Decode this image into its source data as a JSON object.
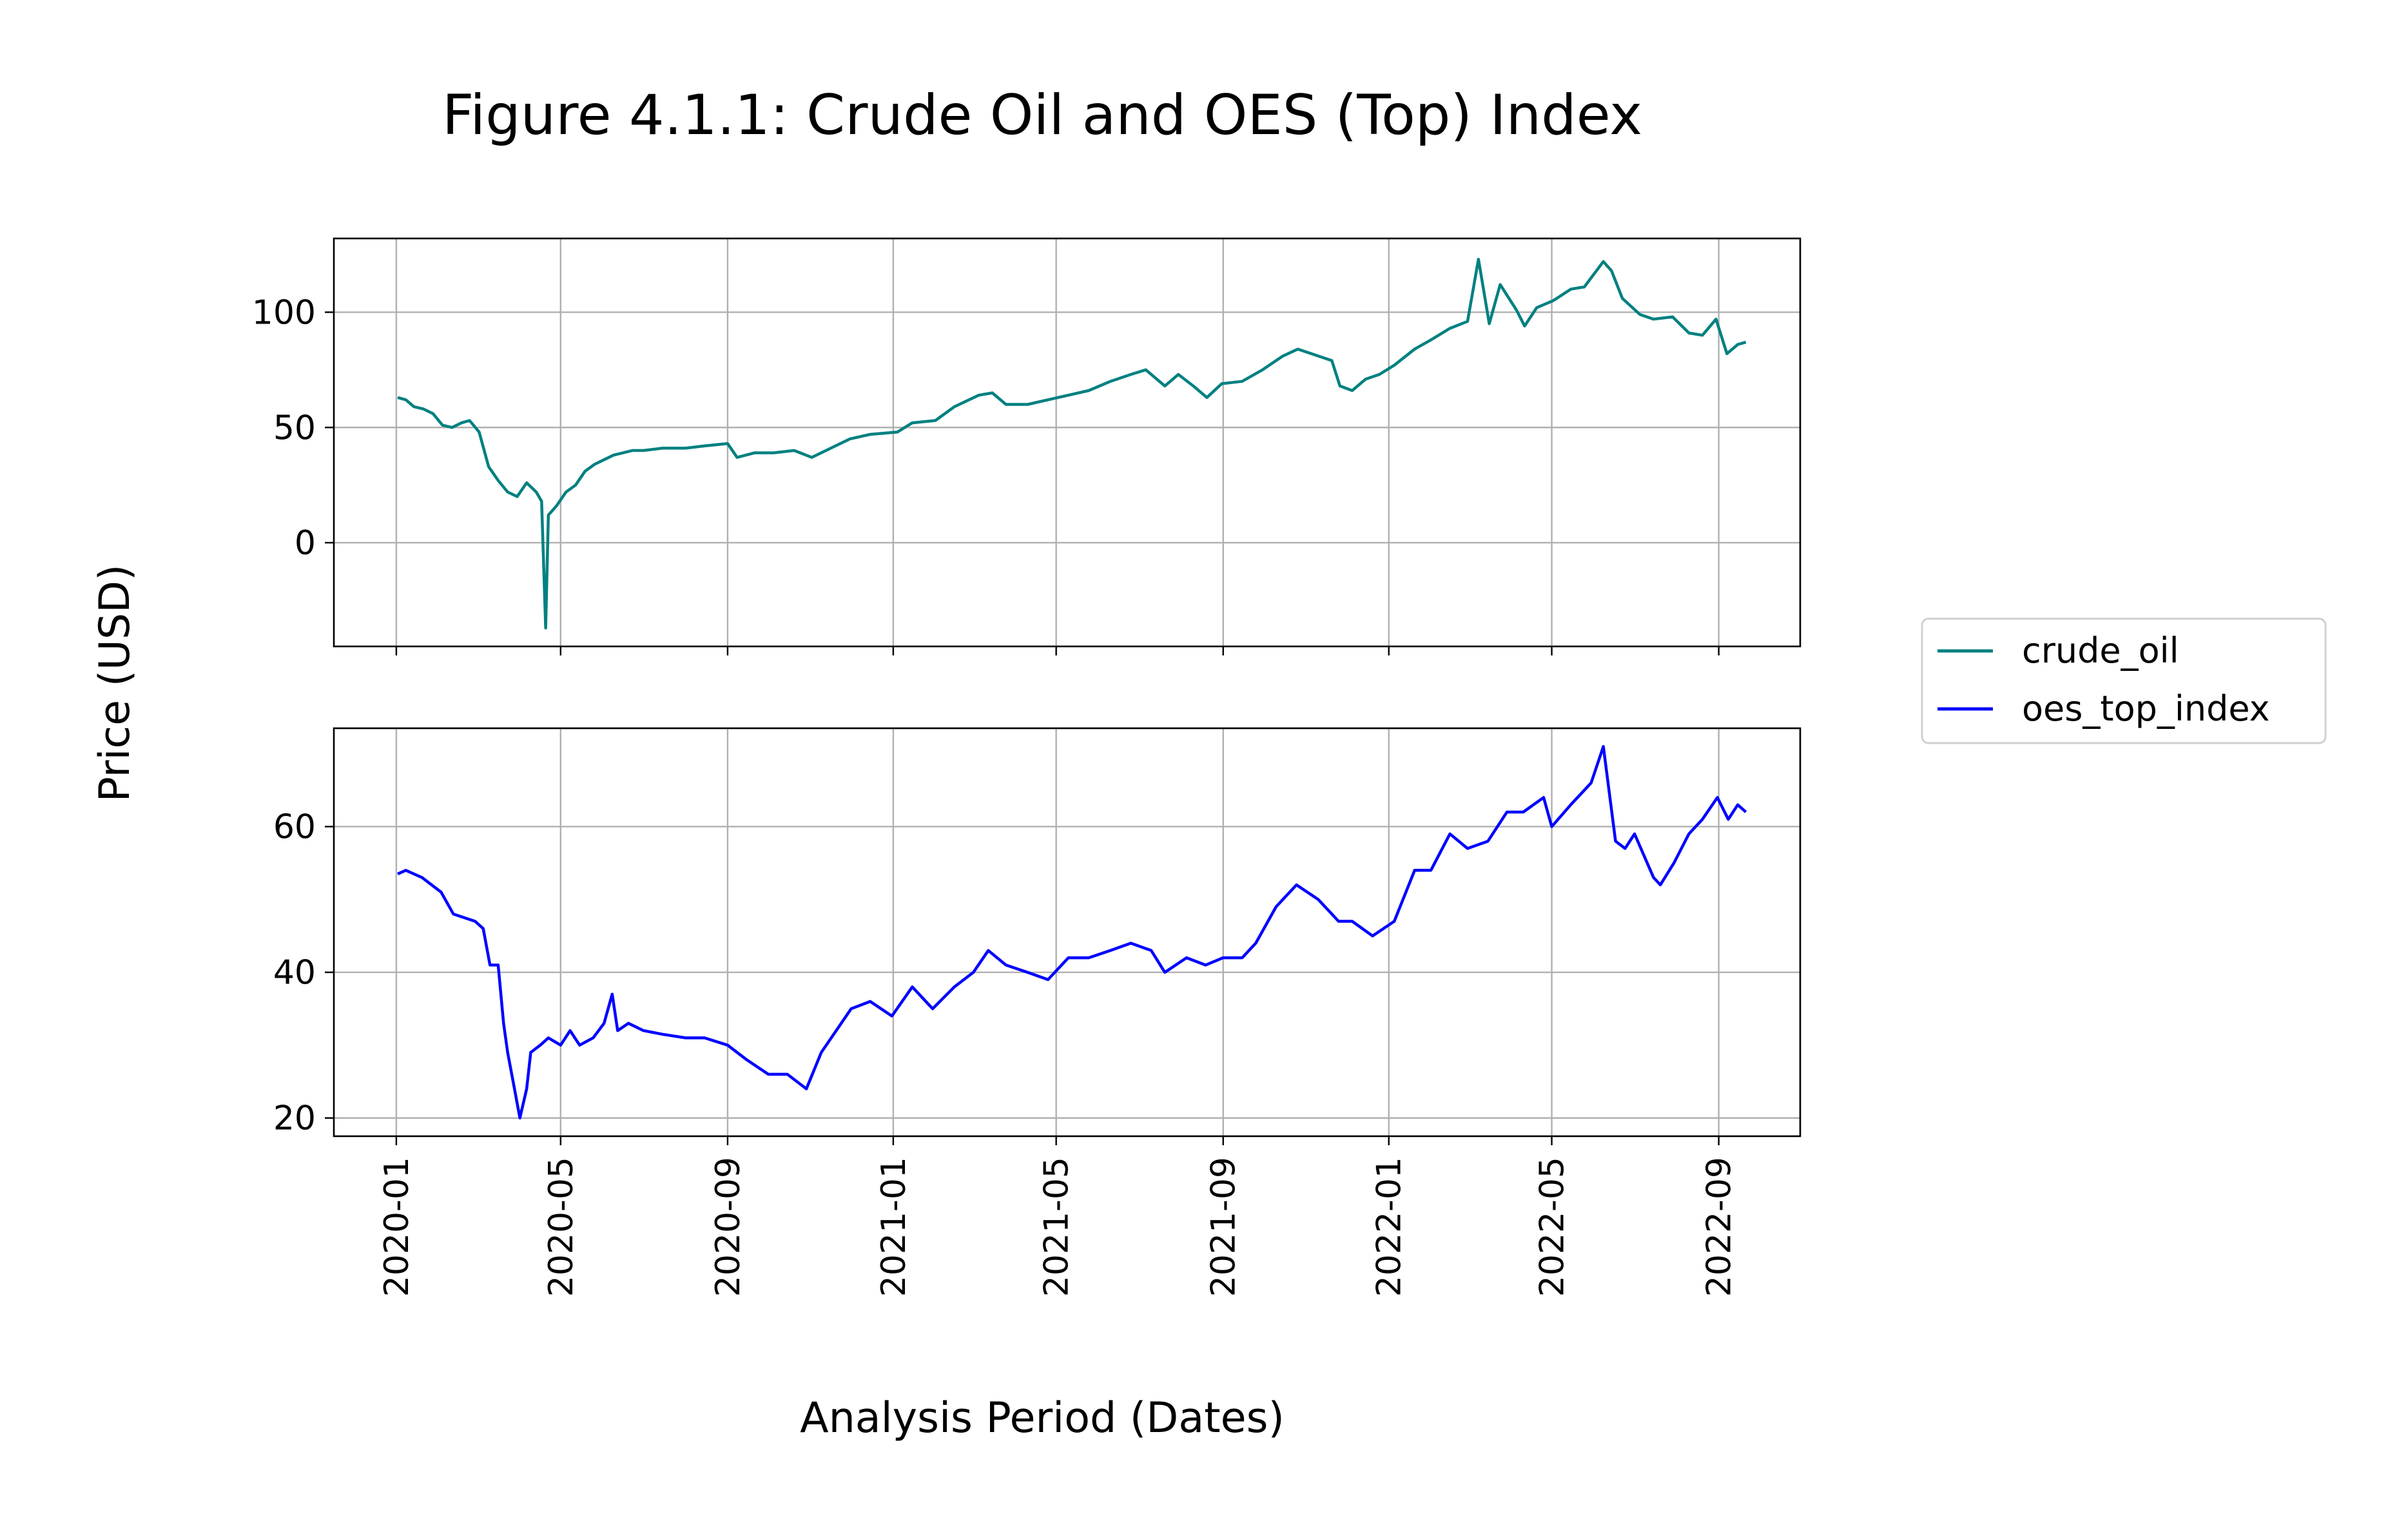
{
  "chart_data": {
    "type": "line",
    "title": "Figure 4.1.1: Crude Oil and OES (Top) Index",
    "xlabel": "Analysis Period (Dates)",
    "ylabel": "Price (USD)",
    "grid": true,
    "legend_position": "right",
    "x_ticks": [
      "2020-01",
      "2020-05",
      "2020-09",
      "2021-01",
      "2021-05",
      "2021-09",
      "2022-01",
      "2022-05",
      "2022-09"
    ],
    "x_range": [
      "2019-11-16",
      "2022-10-31"
    ],
    "panels": [
      {
        "series_name": "crude_oil",
        "color": "#008080",
        "ylim": [
          -45,
          132
        ],
        "yticks": [
          0,
          50,
          100
        ],
        "points": [
          [
            "2020-01-02",
            63
          ],
          [
            "2020-01-08",
            62
          ],
          [
            "2020-01-14",
            59
          ],
          [
            "2020-01-21",
            58
          ],
          [
            "2020-01-28",
            56
          ],
          [
            "2020-02-04",
            51
          ],
          [
            "2020-02-11",
            50
          ],
          [
            "2020-02-18",
            52
          ],
          [
            "2020-02-24",
            53
          ],
          [
            "2020-03-02",
            48
          ],
          [
            "2020-03-09",
            33
          ],
          [
            "2020-03-16",
            27
          ],
          [
            "2020-03-23",
            22
          ],
          [
            "2020-03-30",
            20
          ],
          [
            "2020-04-06",
            26
          ],
          [
            "2020-04-13",
            22
          ],
          [
            "2020-04-17",
            18
          ],
          [
            "2020-04-20",
            -37
          ],
          [
            "2020-04-22",
            12
          ],
          [
            "2020-04-28",
            16
          ],
          [
            "2020-05-05",
            22
          ],
          [
            "2020-05-12",
            25
          ],
          [
            "2020-05-19",
            31
          ],
          [
            "2020-05-26",
            34
          ],
          [
            "2020-06-02",
            36
          ],
          [
            "2020-06-09",
            38
          ],
          [
            "2020-06-16",
            39
          ],
          [
            "2020-06-23",
            40
          ],
          [
            "2020-07-01",
            40
          ],
          [
            "2020-07-15",
            41
          ],
          [
            "2020-08-01",
            41
          ],
          [
            "2020-08-15",
            42
          ],
          [
            "2020-09-01",
            43
          ],
          [
            "2020-09-08",
            37
          ],
          [
            "2020-09-21",
            39
          ],
          [
            "2020-10-05",
            39
          ],
          [
            "2020-10-20",
            40
          ],
          [
            "2020-11-02",
            37
          ],
          [
            "2020-11-16",
            41
          ],
          [
            "2020-11-30",
            45
          ],
          [
            "2020-12-15",
            47
          ],
          [
            "2021-01-04",
            48
          ],
          [
            "2021-01-15",
            52
          ],
          [
            "2021-02-01",
            53
          ],
          [
            "2021-02-15",
            59
          ],
          [
            "2021-03-05",
            64
          ],
          [
            "2021-03-15",
            65
          ],
          [
            "2021-03-25",
            60
          ],
          [
            "2021-04-10",
            60
          ],
          [
            "2021-04-25",
            62
          ],
          [
            "2021-05-10",
            64
          ],
          [
            "2021-05-25",
            66
          ],
          [
            "2021-06-10",
            70
          ],
          [
            "2021-06-25",
            73
          ],
          [
            "2021-07-06",
            75
          ],
          [
            "2021-07-20",
            68
          ],
          [
            "2021-07-30",
            73
          ],
          [
            "2021-08-10",
            68
          ],
          [
            "2021-08-20",
            63
          ],
          [
            "2021-08-31",
            69
          ],
          [
            "2021-09-15",
            70
          ],
          [
            "2021-09-30",
            75
          ],
          [
            "2021-10-15",
            81
          ],
          [
            "2021-10-26",
            84
          ],
          [
            "2021-11-10",
            81
          ],
          [
            "2021-11-20",
            79
          ],
          [
            "2021-11-26",
            68
          ],
          [
            "2021-12-05",
            66
          ],
          [
            "2021-12-15",
            71
          ],
          [
            "2021-12-25",
            73
          ],
          [
            "2022-01-05",
            77
          ],
          [
            "2022-01-20",
            84
          ],
          [
            "2022-02-01",
            88
          ],
          [
            "2022-02-15",
            93
          ],
          [
            "2022-02-28",
            96
          ],
          [
            "2022-03-08",
            123
          ],
          [
            "2022-03-16",
            95
          ],
          [
            "2022-03-24",
            112
          ],
          [
            "2022-04-05",
            101
          ],
          [
            "2022-04-11",
            94
          ],
          [
            "2022-04-20",
            102
          ],
          [
            "2022-05-02",
            105
          ],
          [
            "2022-05-15",
            110
          ],
          [
            "2022-05-25",
            111
          ],
          [
            "2022-06-08",
            122
          ],
          [
            "2022-06-14",
            118
          ],
          [
            "2022-06-22",
            106
          ],
          [
            "2022-07-05",
            99
          ],
          [
            "2022-07-15",
            97
          ],
          [
            "2022-07-29",
            98
          ],
          [
            "2022-08-10",
            91
          ],
          [
            "2022-08-20",
            90
          ],
          [
            "2022-08-30",
            97
          ],
          [
            "2022-09-07",
            82
          ],
          [
            "2022-09-15",
            86
          ],
          [
            "2022-09-21",
            87
          ]
        ]
      },
      {
        "series_name": "oes_top_index",
        "color": "#0000ff",
        "ylim": [
          17.5,
          73.5
        ],
        "yticks": [
          20,
          40,
          60
        ],
        "points": [
          [
            "2020-01-02",
            53.5
          ],
          [
            "2020-01-08",
            54
          ],
          [
            "2020-01-20",
            53
          ],
          [
            "2020-02-03",
            51
          ],
          [
            "2020-02-12",
            48
          ],
          [
            "2020-02-20",
            47.5
          ],
          [
            "2020-02-28",
            47
          ],
          [
            "2020-03-05",
            46
          ],
          [
            "2020-03-10",
            41
          ],
          [
            "2020-03-16",
            41
          ],
          [
            "2020-03-20",
            33
          ],
          [
            "2020-03-23",
            29
          ],
          [
            "2020-03-27",
            25
          ],
          [
            "2020-04-01",
            20
          ],
          [
            "2020-04-06",
            24
          ],
          [
            "2020-04-09",
            29
          ],
          [
            "2020-04-16",
            30
          ],
          [
            "2020-04-22",
            31
          ],
          [
            "2020-05-01",
            30
          ],
          [
            "2020-05-08",
            32
          ],
          [
            "2020-05-15",
            30
          ],
          [
            "2020-05-25",
            31
          ],
          [
            "2020-06-02",
            33
          ],
          [
            "2020-06-08",
            37
          ],
          [
            "2020-06-12",
            32
          ],
          [
            "2020-06-20",
            33
          ],
          [
            "2020-07-01",
            32
          ],
          [
            "2020-07-15",
            31.5
          ],
          [
            "2020-08-01",
            31
          ],
          [
            "2020-08-15",
            31
          ],
          [
            "2020-09-01",
            30
          ],
          [
            "2020-09-15",
            28
          ],
          [
            "2020-10-01",
            26
          ],
          [
            "2020-10-15",
            26
          ],
          [
            "2020-10-29",
            24
          ],
          [
            "2020-11-09",
            29
          ],
          [
            "2020-11-20",
            32
          ],
          [
            "2020-12-01",
            35
          ],
          [
            "2020-12-15",
            36
          ],
          [
            "2020-12-31",
            34
          ],
          [
            "2021-01-15",
            38
          ],
          [
            "2021-01-30",
            35
          ],
          [
            "2021-02-15",
            38
          ],
          [
            "2021-03-01",
            40
          ],
          [
            "2021-03-12",
            43
          ],
          [
            "2021-03-25",
            41
          ],
          [
            "2021-04-10",
            40
          ],
          [
            "2021-04-25",
            39
          ],
          [
            "2021-05-10",
            42
          ],
          [
            "2021-05-25",
            42
          ],
          [
            "2021-06-10",
            43
          ],
          [
            "2021-06-25",
            44
          ],
          [
            "2021-07-10",
            43
          ],
          [
            "2021-07-20",
            40
          ],
          [
            "2021-08-05",
            42
          ],
          [
            "2021-08-19",
            41
          ],
          [
            "2021-09-01",
            42
          ],
          [
            "2021-09-15",
            42
          ],
          [
            "2021-09-25",
            44
          ],
          [
            "2021-10-10",
            49
          ],
          [
            "2021-10-25",
            52
          ],
          [
            "2021-11-10",
            50
          ],
          [
            "2021-11-25",
            47
          ],
          [
            "2021-12-05",
            47
          ],
          [
            "2021-12-20",
            45
          ],
          [
            "2022-01-05",
            47
          ],
          [
            "2022-01-20",
            54
          ],
          [
            "2022-02-01",
            54
          ],
          [
            "2022-02-15",
            59
          ],
          [
            "2022-02-28",
            57
          ],
          [
            "2022-03-15",
            58
          ],
          [
            "2022-03-29",
            62
          ],
          [
            "2022-04-10",
            62
          ],
          [
            "2022-04-25",
            64
          ],
          [
            "2022-05-01",
            60
          ],
          [
            "2022-05-15",
            63
          ],
          [
            "2022-05-30",
            66
          ],
          [
            "2022-06-08",
            71
          ],
          [
            "2022-06-17",
            58
          ],
          [
            "2022-06-24",
            57
          ],
          [
            "2022-07-01",
            59
          ],
          [
            "2022-07-15",
            53
          ],
          [
            "2022-07-20",
            52
          ],
          [
            "2022-07-30",
            55
          ],
          [
            "2022-08-10",
            59
          ],
          [
            "2022-08-20",
            61
          ],
          [
            "2022-08-31",
            64
          ],
          [
            "2022-09-08",
            61
          ],
          [
            "2022-09-15",
            63
          ],
          [
            "2022-09-21",
            62
          ]
        ]
      }
    ]
  }
}
